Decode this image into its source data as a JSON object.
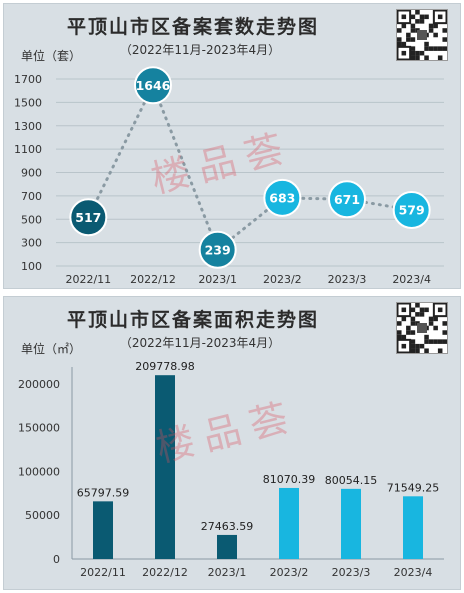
{
  "colors": {
    "panel_bg": "#d8dfe4",
    "dark_teal": "#0a5a72",
    "mid_teal": "#15829f",
    "light_blue": "#18b6e0",
    "grid": "#b9c4ca",
    "line": "#8a9aa3"
  },
  "icons": {
    "qr": "qr-code-icon"
  },
  "watermark_text": "楼品荟",
  "chart_data": [
    {
      "type": "line",
      "title": "平顶山市区备案套数走势图",
      "subtitle": "（2022年11月-2023年4月）",
      "ylabel": "单位（套）",
      "categories": [
        "2022/11",
        "2022/12",
        "2023/1",
        "2023/2",
        "2023/3",
        "2023/4"
      ],
      "values": [
        517,
        1646,
        239,
        683,
        671,
        579
      ],
      "point_labels": [
        "517",
        "1646",
        "239",
        "683",
        "671",
        "579"
      ],
      "point_colors": [
        "#0a5a72",
        "#15829f",
        "#15829f",
        "#18b6e0",
        "#18b6e0",
        "#18b6e0"
      ],
      "yticks": [
        "100",
        "300",
        "500",
        "700",
        "900",
        "1100",
        "1300",
        "1500",
        "1700"
      ],
      "ylim": [
        100,
        1700
      ],
      "grid": true
    },
    {
      "type": "bar",
      "title": "平顶山市区备案面积走势图",
      "subtitle": "（2022年11月-2023年4月）",
      "ylabel": "单位（㎡）",
      "categories": [
        "2022/11",
        "2022/12",
        "2023/1",
        "2023/2",
        "2023/3",
        "2023/4"
      ],
      "values": [
        65797.59,
        209778.98,
        27463.59,
        81070.39,
        80054.15,
        71549.25
      ],
      "value_labels": [
        "65797.59",
        "209778.98",
        "27463.59",
        "81070.39",
        "80054.15",
        "71549.25"
      ],
      "bar_colors": [
        "#0a5a72",
        "#0a5a72",
        "#0a5a72",
        "#18b6e0",
        "#18b6e0",
        "#18b6e0"
      ],
      "yticks": [
        "0",
        "50000",
        "100000",
        "150000",
        "200000"
      ],
      "ylim": [
        0,
        210000
      ],
      "grid": false
    }
  ]
}
